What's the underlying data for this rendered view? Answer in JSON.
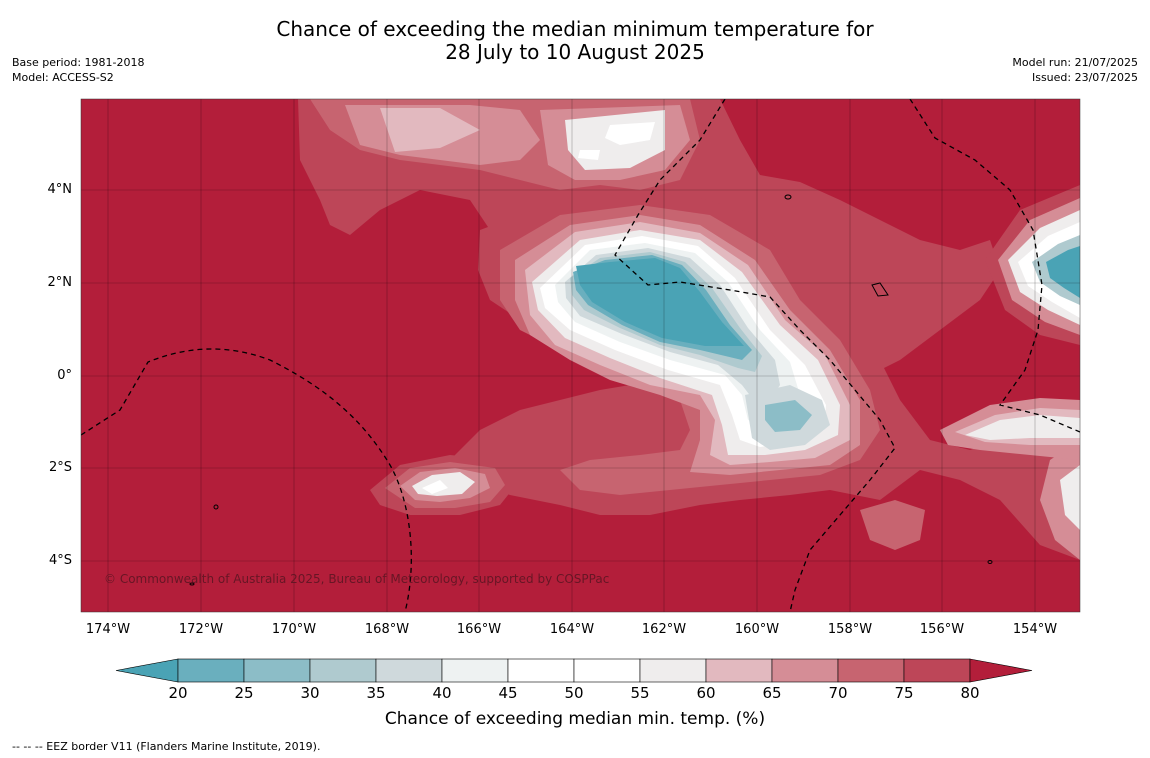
{
  "title": {
    "line1": "Chance of exceeding the median minimum temperature for",
    "line2": "28 July to 10 August 2025"
  },
  "meta_left": {
    "base_period": "Base period: 1981-2018",
    "model": "Model: ACCESS-S2"
  },
  "meta_right": {
    "model_run": "Model run: 21/07/2025",
    "issued": "Issued: 23/07/2025"
  },
  "map": {
    "latitude_labels": [
      "4°N",
      "2°N",
      "0°",
      "2°S",
      "4°S"
    ],
    "longitude_labels": [
      "174°W",
      "172°W",
      "170°W",
      "168°W",
      "166°W",
      "164°W",
      "162°W",
      "160°W",
      "158°W",
      "156°W",
      "154°W"
    ],
    "background_color": "#b31e3a",
    "copyright": "© Commonwealth of Australia 2025, Bureau of Meteorology, supported by COSPPac"
  },
  "colorbar": {
    "ticks": [
      "20",
      "25",
      "30",
      "35",
      "40",
      "45",
      "50",
      "55",
      "60",
      "65",
      "70",
      "75",
      "80"
    ],
    "colors": [
      "#4aa3b5",
      "#6aafbe",
      "#8cbdc7",
      "#afcacf",
      "#cfd9dc",
      "#eef2f2",
      "#ffffff",
      "#ffffff",
      "#efeded",
      "#e2b9bf",
      "#d58d96",
      "#c76470",
      "#bd4658",
      "#b31e3a"
    ],
    "label": "Chance of exceeding median min. temp. (%)"
  },
  "footer": "--  --  -- EEZ border V11 (Flanders Marine Institute, 2019)."
}
